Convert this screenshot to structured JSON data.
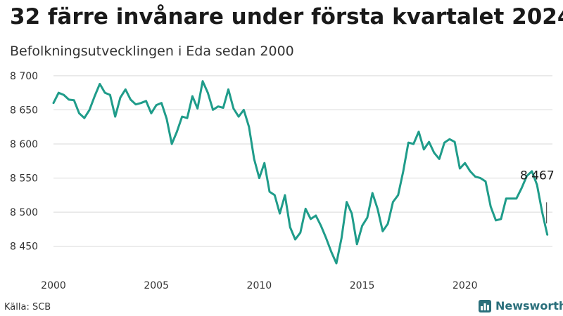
{
  "header": {
    "title": "32 färre invånare under första kvartalet 2024",
    "subtitle": "Befolkningsutvecklingen i Eda sedan 2000"
  },
  "footer": {
    "source": "Källa: SCB",
    "brand": "Newsworthy"
  },
  "colors": {
    "line": "#1f9c8a",
    "grid": "#d9d9d9",
    "brand": "#2a6f7b"
  },
  "chart_data": {
    "type": "line",
    "title": "",
    "xlabel": "",
    "ylabel": "",
    "xlim": [
      2000,
      2024.25
    ],
    "ylim": [
      8425,
      8705
    ],
    "y_ticks": [
      8450,
      8500,
      8550,
      8600,
      8650,
      8700
    ],
    "y_tick_labels": [
      "8 450",
      "8 500",
      "8 550",
      "8 600",
      "8 650",
      "8 700"
    ],
    "x_ticks": [
      2000,
      2005,
      2010,
      2015,
      2020
    ],
    "x_tick_labels": [
      "2000",
      "2005",
      "2010",
      "2015",
      "2020"
    ],
    "grid": true,
    "annotation": {
      "label": "8 467",
      "x": 2024.0,
      "y": 8467
    },
    "series": [
      {
        "x": [
          2000.0,
          2000.25,
          2000.5,
          2000.75,
          2001.0,
          2001.25,
          2001.5,
          2001.75,
          2002.0,
          2002.25,
          2002.5,
          2002.75,
          2003.0,
          2003.25,
          2003.5,
          2003.75,
          2004.0,
          2004.25,
          2004.5,
          2004.75,
          2005.0,
          2005.25,
          2005.5,
          2005.75,
          2006.0,
          2006.25,
          2006.5,
          2006.75,
          2007.0,
          2007.25,
          2007.5,
          2007.75,
          2008.0,
          2008.25,
          2008.5,
          2008.75,
          2009.0,
          2009.25,
          2009.5,
          2009.75,
          2010.0,
          2010.25,
          2010.5,
          2010.75,
          2011.0,
          2011.25,
          2011.5,
          2011.75,
          2012.0,
          2012.25,
          2012.5,
          2012.75,
          2013.0,
          2013.25,
          2013.5,
          2013.75,
          2014.0,
          2014.25,
          2014.5,
          2014.75,
          2015.0,
          2015.25,
          2015.5,
          2015.75,
          2016.0,
          2016.25,
          2016.5,
          2016.75,
          2017.0,
          2017.25,
          2017.5,
          2017.75,
          2018.0,
          2018.25,
          2018.5,
          2018.75,
          2019.0,
          2019.25,
          2019.5,
          2019.75,
          2020.0,
          2020.25,
          2020.5,
          2020.75,
          2021.0,
          2021.25,
          2021.5,
          2021.75,
          2022.0,
          2022.25,
          2022.5,
          2022.75,
          2023.0,
          2023.25,
          2023.5,
          2023.75,
          2024.0
        ],
        "values": [
          8660,
          8675,
          8672,
          8665,
          8664,
          8645,
          8638,
          8650,
          8670,
          8688,
          8675,
          8672,
          8640,
          8668,
          8680,
          8665,
          8658,
          8660,
          8663,
          8645,
          8657,
          8660,
          8637,
          8600,
          8618,
          8640,
          8638,
          8670,
          8652,
          8692,
          8675,
          8650,
          8655,
          8653,
          8680,
          8652,
          8640,
          8650,
          8625,
          8578,
          8550,
          8572,
          8530,
          8525,
          8498,
          8525,
          8478,
          8460,
          8470,
          8505,
          8490,
          8495,
          8480,
          8462,
          8442,
          8425,
          8462,
          8515,
          8498,
          8453,
          8480,
          8492,
          8528,
          8505,
          8472,
          8483,
          8515,
          8525,
          8560,
          8602,
          8600,
          8618,
          8592,
          8603,
          8587,
          8578,
          8602,
          8607,
          8603,
          8564,
          8572,
          8560,
          8552,
          8550,
          8545,
          8508,
          8488,
          8490,
          8520,
          8520,
          8520,
          8535,
          8553,
          8560,
          8540,
          8500,
          8467
        ]
      }
    ]
  }
}
